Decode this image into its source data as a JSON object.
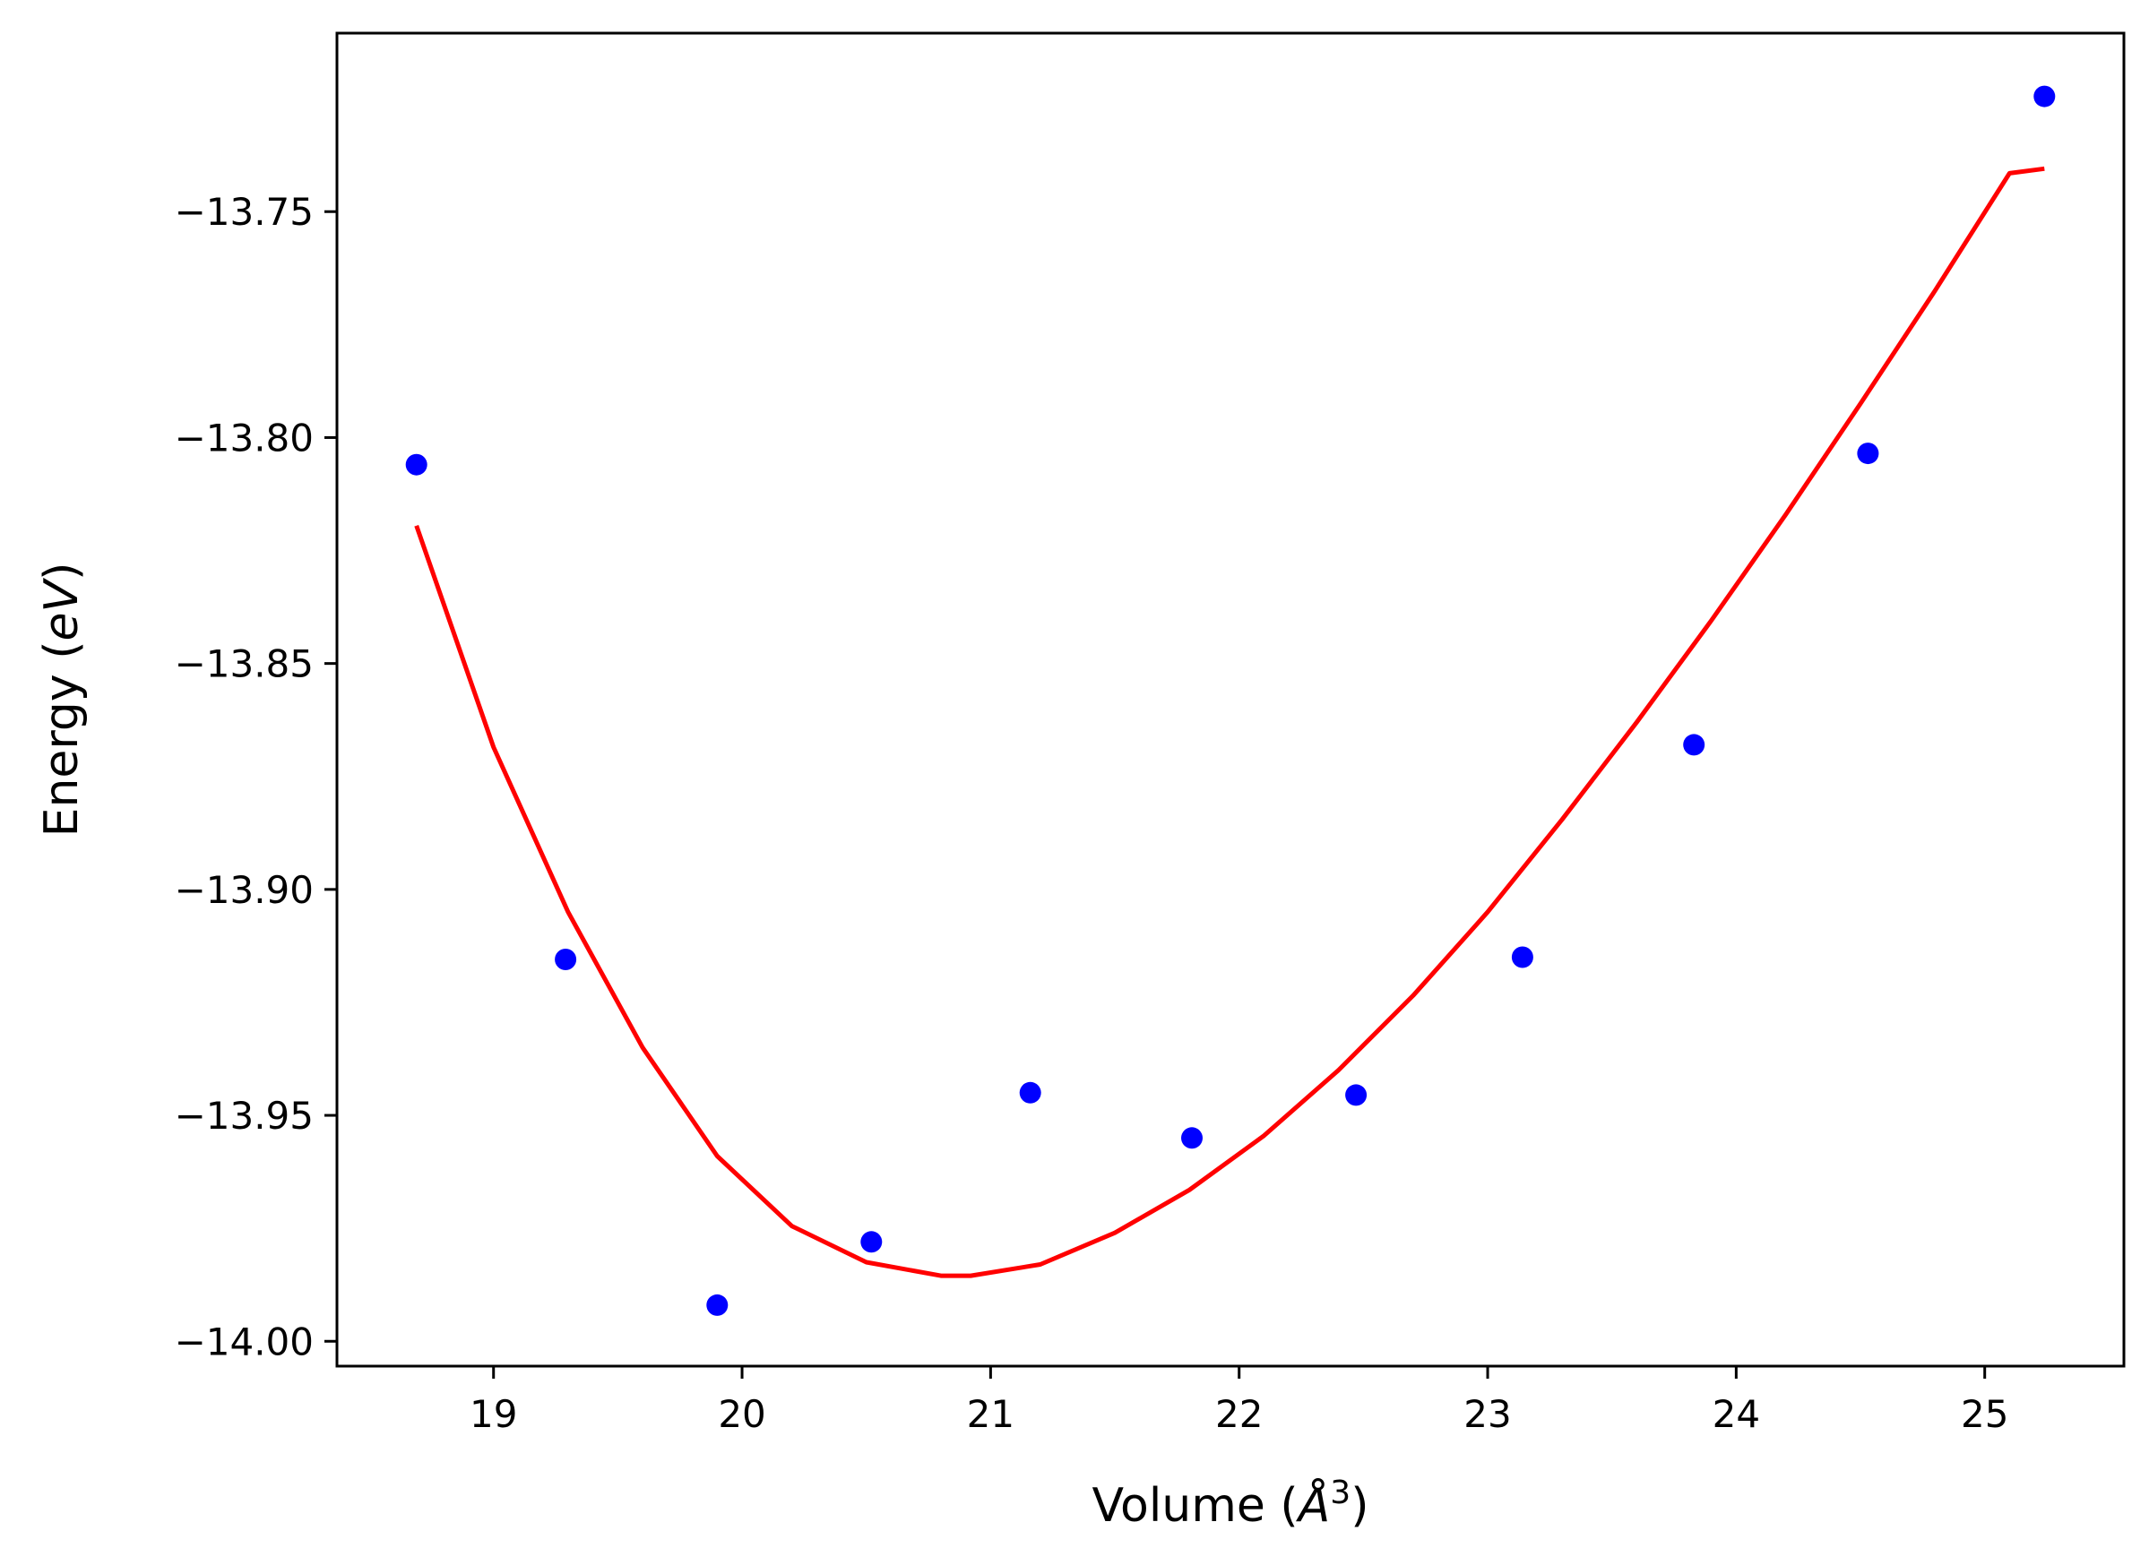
{
  "chart_data": {
    "type": "scatter",
    "xlabel": {
      "prefix": "Volume (",
      "symbol": "Å",
      "sup": "3",
      "suffix": ")"
    },
    "ylabel": {
      "prefix": "Energy (",
      "unit": "eV",
      "suffix": ")"
    },
    "xlim": [
      18.37,
      25.56
    ],
    "ylim": [
      -14.0055,
      -13.7105
    ],
    "grid": false,
    "xticks": [
      19,
      20,
      21,
      22,
      23,
      24,
      25
    ],
    "xtick_labels": [
      "19",
      "20",
      "21",
      "22",
      "23",
      "24",
      "25"
    ],
    "yticks": [
      -14.0,
      -13.95,
      -13.9,
      -13.85,
      -13.8,
      -13.75
    ],
    "ytick_labels": [
      "−14.00",
      "−13.95",
      "−13.90",
      "−13.85",
      "−13.80",
      "−13.75"
    ],
    "series": [
      {
        "kind": "scatter",
        "color": "#0000ff",
        "x": [
          18.69,
          19.29,
          19.9,
          20.52,
          21.16,
          21.81,
          22.47,
          23.14,
          23.83,
          24.53,
          25.24
        ],
        "y": [
          -13.806,
          -13.9155,
          -13.992,
          -13.978,
          -13.945,
          -13.955,
          -13.9455,
          -13.915,
          -13.868,
          -13.8035,
          -13.7245
        ]
      },
      {
        "kind": "fit-curve",
        "color": "#ff0000",
        "x": [
          18.69,
          19.0,
          19.3,
          19.6,
          19.9,
          20.2,
          20.5,
          20.8,
          20.92,
          21.2,
          21.5,
          21.8,
          22.1,
          22.4,
          22.7,
          23.0,
          23.3,
          23.6,
          23.9,
          24.2,
          24.5,
          24.8,
          25.1,
          25.24
        ],
        "y": [
          -13.8195,
          -13.8685,
          -13.905,
          -13.935,
          -13.959,
          -13.9745,
          -13.9825,
          -13.9855,
          -13.9855,
          -13.983,
          -13.976,
          -13.9665,
          -13.9545,
          -13.94,
          -13.9235,
          -13.905,
          -13.8845,
          -13.863,
          -13.8405,
          -13.817,
          -13.7925,
          -13.7675,
          -13.7415,
          -13.7405
        ]
      }
    ]
  }
}
